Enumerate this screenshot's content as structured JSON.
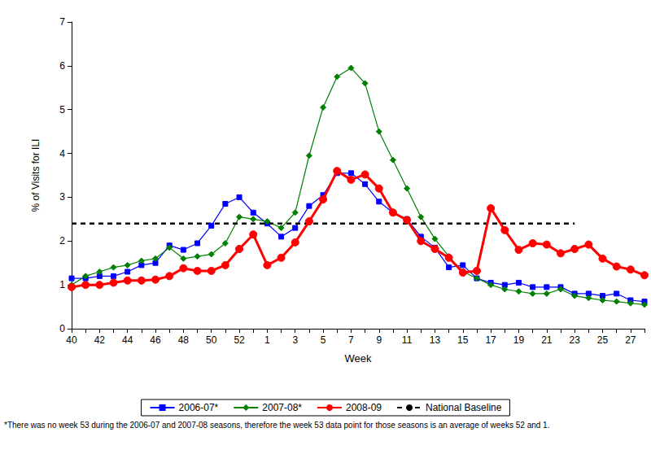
{
  "chart_data": {
    "type": "line",
    "x_label": "Week",
    "y_label": "% of Visits for ILI",
    "footnote": "*There was no week 53 during the 2006-07 and 2007-08 seasons, therefore the week 53 data point for those seasons is an average of weeks 52 and 1.",
    "categories": [
      40,
      null,
      42,
      null,
      44,
      null,
      46,
      null,
      48,
      null,
      50,
      null,
      52,
      null,
      1,
      null,
      3,
      null,
      5,
      null,
      7,
      null,
      9,
      null,
      11,
      null,
      13,
      null,
      15,
      null,
      17,
      null,
      19,
      null,
      21,
      null,
      23,
      null,
      25,
      null,
      27,
      null
    ],
    "ylim": [
      0,
      7
    ],
    "yticks": [
      0,
      1,
      2,
      3,
      4,
      5,
      6,
      7
    ],
    "grid": false,
    "legend": "bottom",
    "series": [
      {
        "name": "2006-07*",
        "color": "#0000ff",
        "marker": "square",
        "line_style": "solid",
        "values": [
          1.15,
          1.15,
          1.2,
          1.2,
          1.3,
          1.45,
          1.5,
          1.9,
          1.8,
          1.95,
          2.35,
          2.85,
          3.0,
          2.65,
          2.4,
          2.1,
          2.3,
          2.8,
          3.05,
          3.55,
          3.55,
          3.3,
          2.9,
          2.65,
          2.5,
          2.1,
          1.85,
          1.4,
          1.45,
          1.15,
          1.05,
          1.0,
          1.05,
          0.95,
          0.95,
          0.95,
          0.8,
          0.8,
          0.75,
          0.8,
          0.65,
          0.62
        ]
      },
      {
        "name": "2007-08*",
        "color": "#008000",
        "marker": "diamond",
        "line_style": "solid",
        "values": [
          1.0,
          1.2,
          1.3,
          1.4,
          1.45,
          1.55,
          1.6,
          1.85,
          1.6,
          1.65,
          1.7,
          1.95,
          2.55,
          2.5,
          2.45,
          2.3,
          2.65,
          3.95,
          5.05,
          5.75,
          5.95,
          5.6,
          4.5,
          3.85,
          3.2,
          2.55,
          2.05,
          1.65,
          1.3,
          1.15,
          1.0,
          0.9,
          0.85,
          0.8,
          0.8,
          0.9,
          0.75,
          0.7,
          0.65,
          0.62,
          0.58,
          0.55
        ]
      },
      {
        "name": "2008-09",
        "color": "#ff0000",
        "marker": "circle",
        "line_style": "solid",
        "values": [
          0.95,
          1.0,
          1.0,
          1.05,
          1.1,
          1.1,
          1.12,
          1.2,
          1.38,
          1.32,
          1.32,
          1.45,
          1.82,
          2.15,
          1.45,
          1.62,
          1.97,
          2.45,
          2.95,
          3.6,
          3.4,
          3.52,
          3.2,
          2.65,
          2.48,
          2.0,
          1.82,
          1.62,
          1.28,
          1.32,
          2.75,
          2.25,
          1.8,
          1.95,
          1.92,
          1.72,
          1.82,
          1.92,
          1.6,
          1.42,
          1.35,
          1.22
        ]
      },
      {
        "name": "National Baseline",
        "color": "#000000",
        "marker": "none",
        "line_style": "dashed",
        "values": [
          2.4,
          2.4,
          2.4,
          2.4,
          2.4,
          2.4,
          2.4,
          2.4,
          2.4,
          2.4,
          2.4,
          2.4,
          2.4,
          2.4,
          2.4,
          2.4,
          2.4,
          2.4,
          2.4,
          2.4,
          2.4,
          2.4,
          2.4,
          2.4,
          2.4,
          2.4,
          2.4,
          2.4,
          2.4,
          2.4,
          2.4,
          2.4,
          2.4,
          2.4,
          2.4,
          2.4,
          2.4,
          null,
          null,
          null,
          null,
          null
        ]
      }
    ]
  }
}
